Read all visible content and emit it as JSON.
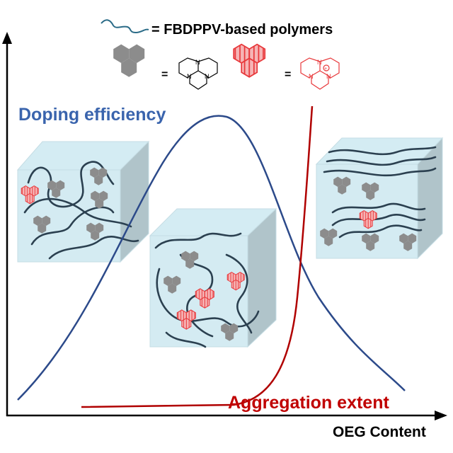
{
  "legend": {
    "polymer_label": "= FBDPPV-based polymers",
    "equals_neutral": "=",
    "equals_doped": "=",
    "n_atom": "N",
    "plus_sign": "+"
  },
  "curves": {
    "doping_label": "Doping efficiency",
    "aggregation_label": "Aggregation extent"
  },
  "axes": {
    "x_label": "OEG Content"
  },
  "colors": {
    "doping": "#3a64ad",
    "aggregation": "#c00000",
    "polymer": "#2b4050",
    "dopant_neutral": "#8c8c8c",
    "dopant_doped": "#e8393c",
    "cube": "#bfe1ec"
  }
}
